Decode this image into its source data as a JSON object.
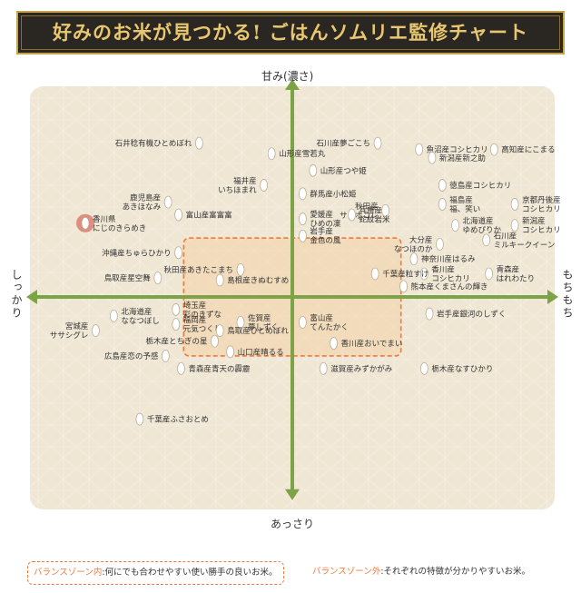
{
  "header": {
    "title": "好みのお米が見つかる! ごはんソムリエ監修チャート"
  },
  "axes": {
    "top": "甘み(濃さ)",
    "bottom": "あっさり",
    "left": "しっかり",
    "right": "もちもち"
  },
  "legend": {
    "inside_key": "バランスゾーン内",
    "inside_text": ":何にでも合わせやすい使い勝手の良いお米。",
    "outside_key": "バランスゾーン外",
    "outside_text": ":それぞれの特徴が分かりやすいお米。"
  },
  "colors": {
    "axis": "#7da347",
    "zone_border": "#f07a3c",
    "zone_fill": "#f3d2a6",
    "highlight": "#d9776a",
    "grain": "#ffffff",
    "banner_bg": "#2a2622",
    "banner_text": "#e8c770"
  },
  "chart_data": {
    "type": "scatter",
    "title": "好みのお米が見つかる! ごはんソムリエ監修チャート",
    "x_axis": {
      "negative": "しっかり",
      "positive": "もちもち",
      "range": [
        -10,
        10
      ]
    },
    "y_axis": {
      "negative": "あっさり",
      "positive": "甘み(濃さ)",
      "range": [
        -10,
        10
      ]
    },
    "balance_zone": {
      "x": [
        -4.2,
        4.2
      ],
      "y": [
        -2.8,
        2.8
      ]
    },
    "points": [
      {
        "label": [
          "石井稔有機ひとめぼれ"
        ],
        "x": -3.6,
        "y": 7.3,
        "side": "left"
      },
      {
        "label": [
          "山形産雪若丸"
        ],
        "x": -0.8,
        "y": 6.8,
        "side": "right"
      },
      {
        "label": [
          "石川産夢ごこち"
        ],
        "x": 3.3,
        "y": 7.3,
        "side": "left"
      },
      {
        "label": [
          "魚沼産コシヒカリ"
        ],
        "x": 4.9,
        "y": 7.0,
        "side": "right"
      },
      {
        "label": [
          "新潟産新之助"
        ],
        "x": 5.4,
        "y": 6.6,
        "side": "right"
      },
      {
        "label": [
          "高知産にこまる"
        ],
        "x": 7.8,
        "y": 7.0,
        "side": "right"
      },
      {
        "label": [
          "山形産つや姫"
        ],
        "x": 0.8,
        "y": 6.0,
        "side": "right"
      },
      {
        "label": [
          "福井産",
          "いちほまれ"
        ],
        "x": -1.1,
        "y": 5.3,
        "side": "left"
      },
      {
        "label": [
          "徳島産コシヒカリ"
        ],
        "x": 5.8,
        "y": 5.3,
        "side": "right"
      },
      {
        "label": [
          "群馬産小松姫"
        ],
        "x": 0.4,
        "y": 4.9,
        "side": "right"
      },
      {
        "label": [
          "鹿児島産",
          "あきほなみ"
        ],
        "x": -4.8,
        "y": 4.5,
        "side": "left"
      },
      {
        "label": [
          "秋田産",
          "サキホコレ"
        ],
        "x": 3.6,
        "y": 4.1,
        "side": "left"
      },
      {
        "label": [
          "福島産",
          "福、笑い"
        ],
        "x": 5.8,
        "y": 4.4,
        "side": "right"
      },
      {
        "label": [
          "京都丹後産",
          "コシヒカリ"
        ],
        "x": 8.6,
        "y": 4.4,
        "side": "right"
      },
      {
        "label": [
          "愛媛産",
          "ひめの凜"
        ],
        "x": 0.4,
        "y": 3.7,
        "side": "right"
      },
      {
        "label": [
          "兵庫産",
          "蛇紋岩米"
        ],
        "x": 2.3,
        "y": 3.9,
        "side": "right"
      },
      {
        "label": [
          "富山産富富富"
        ],
        "x": -4.4,
        "y": 3.9,
        "side": "right"
      },
      {
        "label": [
          "北海道産",
          "ゆめぴりか"
        ],
        "x": 6.3,
        "y": 3.4,
        "side": "right"
      },
      {
        "label": [
          "新潟産",
          "コシヒカリ"
        ],
        "x": 8.6,
        "y": 3.4,
        "side": "right"
      },
      {
        "label": [
          "香川県",
          "にじのきらめき"
        ],
        "x": -8.0,
        "y": 3.5,
        "side": "right",
        "highlight": true
      },
      {
        "label": [
          "岩手産",
          "金色の風"
        ],
        "x": 0.4,
        "y": 2.9,
        "side": "right"
      },
      {
        "label": [
          "石川産",
          "ミルキークイーン"
        ],
        "x": 7.5,
        "y": 2.7,
        "side": "right"
      },
      {
        "label": [
          "大分産",
          "なつほのか"
        ],
        "x": 5.7,
        "y": 2.5,
        "side": "left"
      },
      {
        "label": [
          "沖縄産ちゅらひかり"
        ],
        "x": -4.4,
        "y": 2.1,
        "side": "left"
      },
      {
        "label": [
          "神奈川産はるみ"
        ],
        "x": 4.7,
        "y": 1.8,
        "side": "right"
      },
      {
        "label": [
          "秋田産あきたこまち"
        ],
        "x": -2.0,
        "y": 1.3,
        "side": "left"
      },
      {
        "label": [
          "香川産",
          "コシヒカリ"
        ],
        "x": 5.1,
        "y": 1.1,
        "side": "right"
      },
      {
        "label": [
          "青森産",
          "はれわたり"
        ],
        "x": 7.6,
        "y": 1.1,
        "side": "right"
      },
      {
        "label": [
          "千葉産粒すけ"
        ],
        "x": 3.2,
        "y": 1.1,
        "side": "right"
      },
      {
        "label": [
          "鳥取産星空舞"
        ],
        "x": -5.2,
        "y": 0.9,
        "side": "left"
      },
      {
        "label": [
          "島根産きぬむすめ"
        ],
        "x": -2.8,
        "y": 0.8,
        "side": "right"
      },
      {
        "label": [
          "熊本産くまさんの輝き"
        ],
        "x": 4.3,
        "y": 0.5,
        "side": "right"
      },
      {
        "label": [
          "埼玉産",
          "彩のきずな"
        ],
        "x": -4.5,
        "y": -0.6,
        "side": "right"
      },
      {
        "label": [
          "北海道産",
          "ななつぼし"
        ],
        "x": -6.9,
        "y": -0.9,
        "side": "right"
      },
      {
        "label": [
          "富山産",
          "てんたかく"
        ],
        "x": 0.4,
        "y": -1.2,
        "side": "right"
      },
      {
        "label": [
          "岩手産銀河のしずく"
        ],
        "x": 5.3,
        "y": -0.8,
        "side": "right"
      },
      {
        "label": [
          "佐賀産",
          "夢しずく"
        ],
        "x": -2.0,
        "y": -1.2,
        "side": "right"
      },
      {
        "label": [
          "福岡産",
          "元気つくし"
        ],
        "x": -4.5,
        "y": -1.3,
        "side": "right"
      },
      {
        "label": [
          "宮城産",
          "ササシグレ"
        ],
        "x": -7.6,
        "y": -1.6,
        "side": "left"
      },
      {
        "label": [
          "鳥取産ひとめぼれ"
        ],
        "x": -2.8,
        "y": -1.6,
        "side": "right"
      },
      {
        "label": [
          "栃木産とちぎの星"
        ],
        "x": -3.0,
        "y": -2.1,
        "side": "left"
      },
      {
        "label": [
          "香川産おいでまい"
        ],
        "x": 1.6,
        "y": -2.2,
        "side": "right"
      },
      {
        "label": [
          "山口産晴るる"
        ],
        "x": -2.4,
        "y": -2.6,
        "side": "right"
      },
      {
        "label": [
          "広島産恋の予感"
        ],
        "x": -4.9,
        "y": -2.8,
        "side": "left"
      },
      {
        "label": [
          "青森産青天の霹靂"
        ],
        "x": -4.3,
        "y": -3.4,
        "side": "right"
      },
      {
        "label": [
          "滋賀産みずかがみ"
        ],
        "x": 1.2,
        "y": -3.4,
        "side": "right"
      },
      {
        "label": [
          "栃木産なすひかり"
        ],
        "x": 5.1,
        "y": -3.4,
        "side": "right"
      },
      {
        "label": [
          "千葉産ふさおとめ"
        ],
        "x": -5.9,
        "y": -5.8,
        "side": "right"
      }
    ]
  }
}
